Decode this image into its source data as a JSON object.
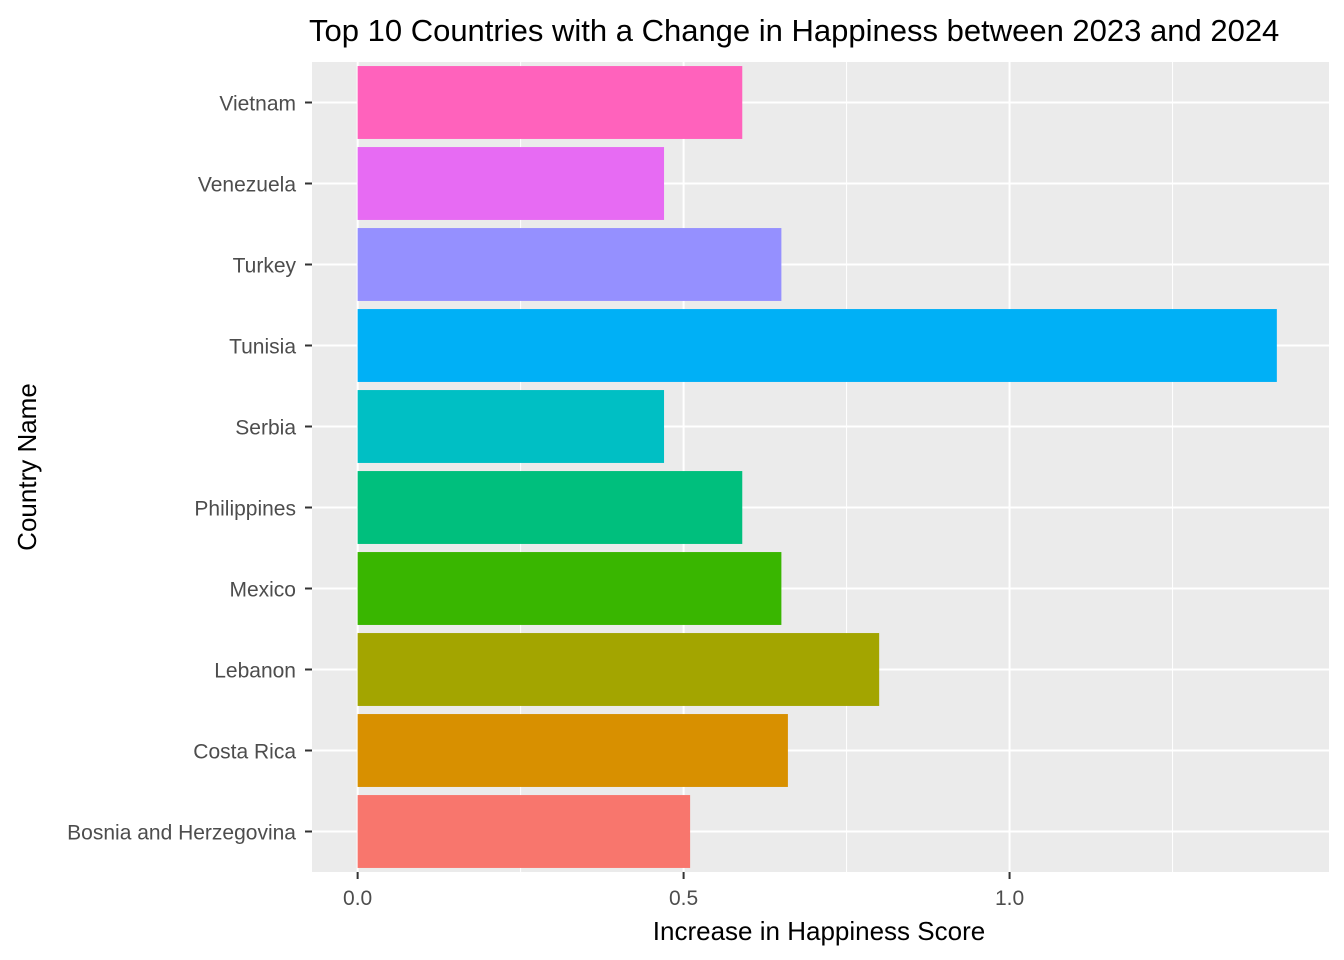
{
  "chart_data": {
    "type": "bar",
    "orientation": "horizontal",
    "title": "Top 10 Countries with a Change in Happiness between 2023 and 2024",
    "xlabel": "Increase in Happiness Score",
    "ylabel": "Country Name",
    "xlim": [
      -0.07,
      1.49
    ],
    "x_ticks": [
      {
        "value": 0.0,
        "label": "0.0"
      },
      {
        "value": 0.5,
        "label": "0.5"
      },
      {
        "value": 1.0,
        "label": "1.0"
      }
    ],
    "x_minor_ticks": [
      0.25,
      0.75,
      1.25
    ],
    "grid": true,
    "legend": "none",
    "panel_background": "#ebebeb",
    "grid_color": "#ffffff",
    "categories": [
      "Bosnia and Herzegovina",
      "Costa Rica",
      "Lebanon",
      "Mexico",
      "Philippines",
      "Serbia",
      "Tunisia",
      "Turkey",
      "Venezuela",
      "Vietnam"
    ],
    "values": [
      0.51,
      0.66,
      0.8,
      0.65,
      0.59,
      0.47,
      1.41,
      0.65,
      0.47,
      0.59
    ],
    "colors": [
      "#F8766D",
      "#D89000",
      "#A3A500",
      "#39B600",
      "#00BF7D",
      "#00BFC4",
      "#00B0F6",
      "#9590FF",
      "#E76BF3",
      "#FF62BC"
    ]
  }
}
